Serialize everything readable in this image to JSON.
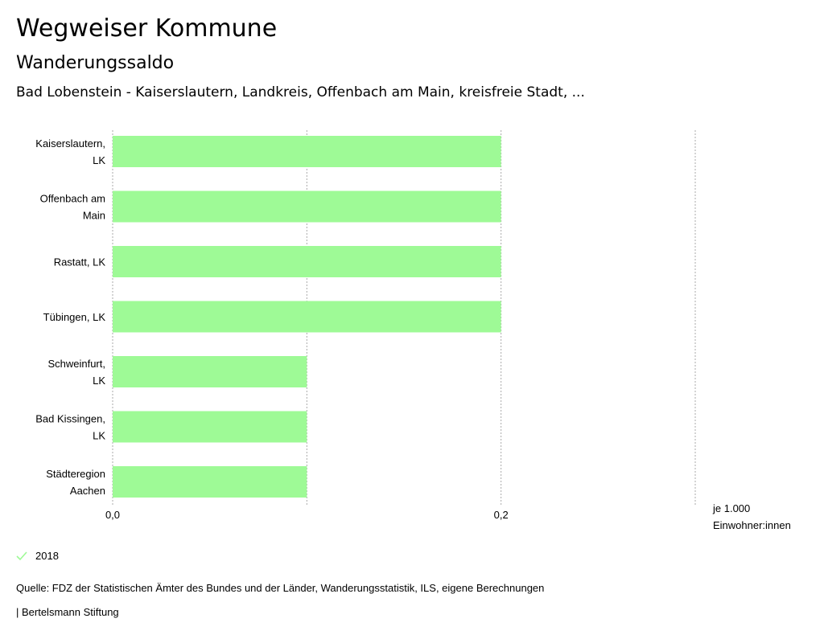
{
  "header": {
    "title": "Wegweiser Kommune",
    "subtitle": "Wanderungssaldo",
    "regions": "Bad Lobenstein - Kaiserslautern, Landkreis, Offenbach am Main, kreisfreie Stadt, ..."
  },
  "chart_data": {
    "type": "bar",
    "orientation": "horizontal",
    "categories": [
      [
        "Kaiserslautern,",
        "LK"
      ],
      [
        "Offenbach am",
        "Main"
      ],
      [
        "Rastatt, LK"
      ],
      [
        "Tübingen, LK"
      ],
      [
        "Schweinfurt,",
        "LK"
      ],
      [
        "Bad Kissingen,",
        "LK"
      ],
      [
        "Städteregion",
        "Aachen"
      ]
    ],
    "series": [
      {
        "name": "2018",
        "values": [
          0.2,
          0.2,
          0.2,
          0.2,
          0.1,
          0.1,
          0.1
        ],
        "color": "#9efa96"
      }
    ],
    "xlim": [
      0,
      0.3
    ],
    "gridlines": [
      0,
      0.1,
      0.2,
      0.3
    ],
    "xticks": [
      {
        "value": 0,
        "label": "0,0"
      },
      {
        "value": 0.2,
        "label": "0,2"
      }
    ],
    "xlabel": [
      "je 1.000",
      "Einwohner:innen"
    ],
    "grid": true
  },
  "legend": {
    "items": [
      {
        "label": "2018",
        "color": "#9efa96"
      }
    ]
  },
  "footer": {
    "source": "Quelle: FDZ der Statistischen Ämter des Bundes und der Länder, Wanderungsstatistik, ILS, eigene Berechnungen",
    "brand": "| Bertelsmann Stiftung"
  }
}
